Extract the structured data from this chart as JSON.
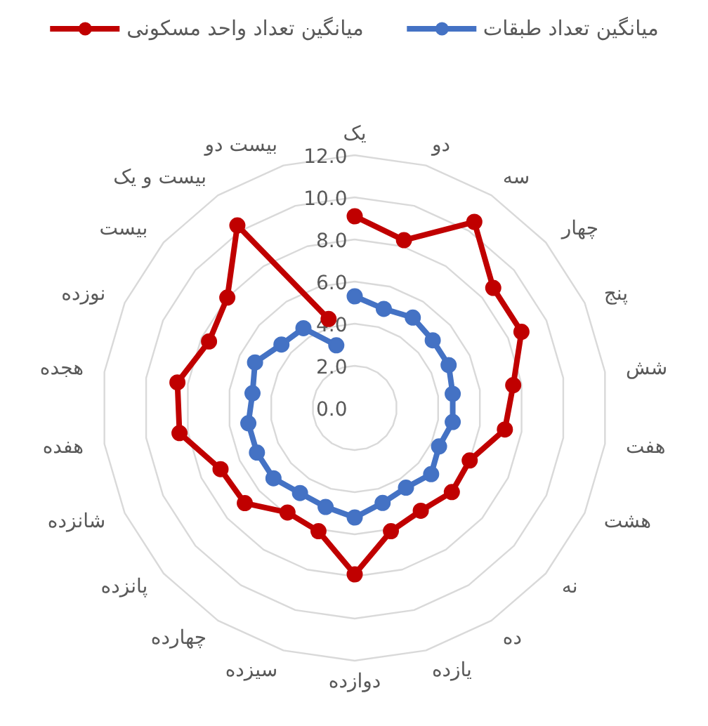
{
  "chart_data": {
    "type": "radar",
    "categories": [
      "یک",
      "دو",
      "سه",
      "چهار",
      "پنج",
      "شش",
      "هفت",
      "هشت",
      "نه",
      "ده",
      "یازده",
      "دوازده",
      "سیزده",
      "چهارده",
      "پانزده",
      "شانزده",
      "هفده",
      "هجده",
      "نوزده",
      "بیست",
      "بیست و یک",
      "بیست دو"
    ],
    "series": [
      {
        "name": "میانگین تعداد واحد مسکونی",
        "color": "#c00000",
        "values": [
          9.1,
          8.3,
          10.5,
          8.7,
          8.7,
          7.6,
          7.2,
          6.0,
          6.1,
          5.8,
          6.1,
          7.9,
          6.1,
          5.9,
          6.9,
          7.0,
          8.4,
          8.5,
          7.6,
          8.0,
          10.3,
          4.4
        ]
      },
      {
        "name": "میانگین تعداد طبقات",
        "color": "#4472c4",
        "values": [
          5.3,
          4.9,
          5.1,
          4.9,
          4.9,
          4.7,
          4.7,
          4.4,
          4.8,
          4.5,
          4.7,
          5.2,
          4.9,
          4.8,
          5.1,
          5.1,
          5.1,
          4.9,
          5.2,
          4.6,
          4.5,
          3.1
        ]
      }
    ],
    "ylim": [
      0,
      12
    ],
    "yticks": [
      {
        "value": 0,
        "label": "0.0"
      },
      {
        "value": 2,
        "label": "2.0"
      },
      {
        "value": 4,
        "label": "4.0"
      },
      {
        "value": 6,
        "label": "6.0"
      },
      {
        "value": 8,
        "label": "8.0"
      },
      {
        "value": 10,
        "label": "10.0"
      },
      {
        "value": 12,
        "label": "12.0"
      }
    ],
    "grid": true,
    "legend": "top",
    "marker": "circle"
  }
}
